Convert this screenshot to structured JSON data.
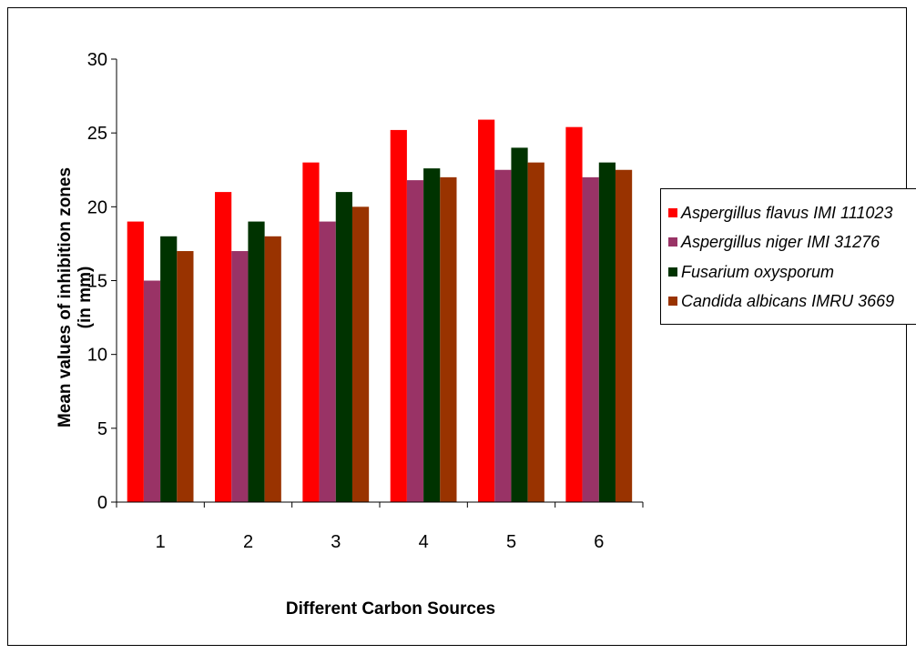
{
  "chart_data": {
    "type": "bar",
    "categories": [
      "1",
      "2",
      "3",
      "4",
      "5",
      "6"
    ],
    "series": [
      {
        "name": "Aspergillus flavus IMI 111023",
        "color": "#ff0000",
        "values": [
          19,
          21,
          23,
          25.2,
          25.9,
          25.4
        ]
      },
      {
        "name": "Aspergillus niger IMI 31276",
        "color": "#993366",
        "values": [
          15,
          17,
          19,
          21.8,
          22.5,
          22
        ]
      },
      {
        "name": "Fusarium oxysporum",
        "color": "#003300",
        "values": [
          18,
          19,
          21,
          22.6,
          24,
          23
        ]
      },
      {
        "name": "Candida albicans IMRU 3669",
        "color": "#993300",
        "values": [
          17,
          18,
          20,
          22,
          23,
          22.5
        ]
      }
    ],
    "ylim": [
      0,
      30
    ],
    "yticks": [
      "0",
      "5",
      "10",
      "15",
      "20",
      "25",
      "30"
    ],
    "xlabel": "Different Carbon Sources",
    "ylabel_line1": "Mean values of inhibition zones",
    "ylabel_line2": "(in mm)",
    "legend_position": "right",
    "grid": false
  }
}
